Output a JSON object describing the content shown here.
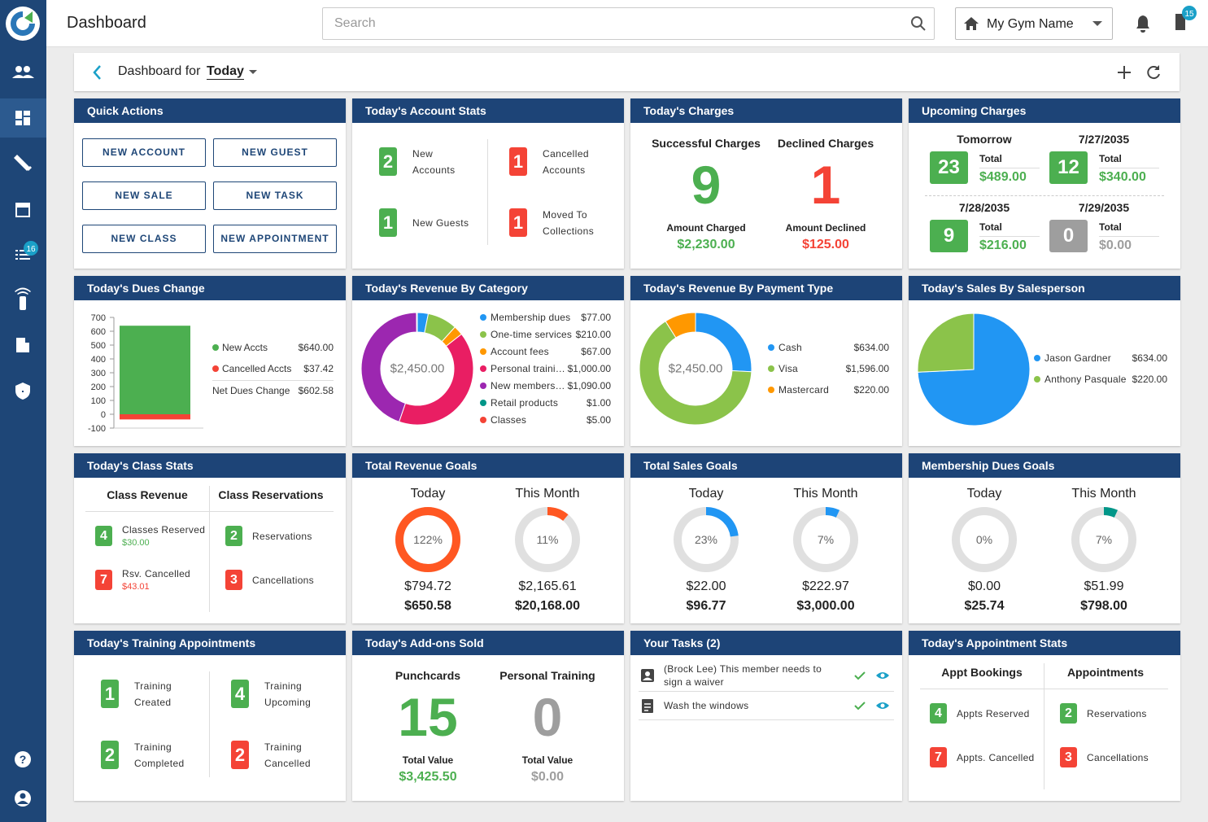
{
  "header": {
    "title": "Dashboard",
    "search_placeholder": "Search",
    "gym_name": "My Gym Name",
    "alerts_badge": 15
  },
  "sidebar": {
    "tasks_badge": 16
  },
  "toolbar": {
    "label": "Dashboard for",
    "period": "Today"
  },
  "quick_actions": {
    "title": "Quick Actions",
    "buttons": [
      "NEW ACCOUNT",
      "NEW GUEST",
      "NEW SALE",
      "NEW TASK",
      "NEW CLASS",
      "NEW APPOINTMENT"
    ]
  },
  "account_stats": {
    "title": "Today's Account Stats",
    "items": [
      {
        "count": 2,
        "label": "New Accounts",
        "color": "#4caf50"
      },
      {
        "count": 1,
        "label": "Cancelled Accounts",
        "color": "#f44336"
      },
      {
        "count": 1,
        "label": "New Guests",
        "color": "#4caf50"
      },
      {
        "count": 1,
        "label": "Moved To Collections",
        "color": "#f44336"
      }
    ]
  },
  "charges": {
    "title": "Today's Charges",
    "columns": [
      {
        "heading": "Successful Charges",
        "count": 9,
        "total_label": "Amount Charged",
        "total": "$2,230.00",
        "color": "#4caf50"
      },
      {
        "heading": "Declined Charges",
        "count": 1,
        "total_label": "Amount Declined",
        "total": "$125.00",
        "color": "#f44336"
      }
    ]
  },
  "upcoming_charges": {
    "title": "Upcoming Charges",
    "items": [
      {
        "date": "Tomorrow",
        "count": 23,
        "total_label": "Total",
        "total": "$489.00",
        "color": "#4caf50"
      },
      {
        "date": "7/27/2035",
        "count": 12,
        "total_label": "Total",
        "total": "$340.00",
        "color": "#4caf50"
      },
      {
        "date": "7/28/2035",
        "count": 9,
        "total_label": "Total",
        "total": "$216.00",
        "color": "#4caf50"
      },
      {
        "date": "7/29/2035",
        "count": 0,
        "total_label": "Total",
        "total": "$0.00",
        "color": "#9e9e9e"
      }
    ]
  },
  "dues_change": {
    "title": "Today's Dues Change",
    "chart": {
      "type": "bar",
      "categories": [
        null
      ],
      "series": [
        {
          "name": "New Accts",
          "color": "#4caf50",
          "values": [
            640
          ],
          "value_labels": [
            "$640.00"
          ]
        },
        {
          "name": "Cancelled Accts",
          "color": "#f44336",
          "values": [
            -37.42
          ],
          "value_labels": [
            "$37.42"
          ]
        }
      ],
      "ylim": [
        -100,
        700
      ],
      "yticks": [
        -100,
        0,
        100,
        200,
        300,
        400,
        500,
        600,
        700
      ],
      "net_label": "Net Dues Change",
      "net_value": "$602.58"
    }
  },
  "revenue_by_category": {
    "title": "Today's Revenue By Category",
    "chart": {
      "type": "donut",
      "center_label": "$2,450.00",
      "categories": [
        "Membership dues",
        "One-time services",
        "Account fees",
        "Personal traini…",
        "New members…",
        "Retail products",
        "Classes"
      ],
      "colors": [
        "#2196f3",
        "#8bc34a",
        "#ff9800",
        "#e91e63",
        "#9c27b0",
        "#009688",
        "#f44336"
      ],
      "values": [
        77,
        210,
        67,
        1000,
        1090,
        1,
        5
      ],
      "value_labels": [
        "$77.00",
        "$210.00",
        "$67.00",
        "$1,000.00",
        "$1,090.00",
        "$1.00",
        "$5.00"
      ]
    }
  },
  "revenue_by_payment": {
    "title": "Today's Revenue By Payment Type",
    "chart": {
      "type": "donut",
      "center_label": "$2,450.00",
      "categories": [
        "Cash",
        "Visa",
        "Mastercard"
      ],
      "colors": [
        "#2196f3",
        "#8bc34a",
        "#ff9800"
      ],
      "values": [
        634,
        1596,
        220
      ],
      "value_labels": [
        "$634.00",
        "$1,596.00",
        "$220.00"
      ]
    }
  },
  "sales_by_salesperson": {
    "title": "Today's Sales By Salesperson",
    "chart": {
      "type": "pie",
      "categories": [
        "Jason Gardner",
        "Anthony Pasquale"
      ],
      "colors": [
        "#2196f3",
        "#8bc34a"
      ],
      "values": [
        634,
        220
      ],
      "value_labels": [
        "$634.00",
        "$220.00"
      ]
    }
  },
  "class_stats": {
    "title": "Today's Class Stats",
    "columns": [
      {
        "heading": "Class Revenue",
        "items": [
          {
            "count": 4,
            "label": "Classes Reserved",
            "amount": "$30.00",
            "color": "#4caf50"
          },
          {
            "count": 7,
            "label": "Rsv. Cancelled",
            "amount": "$43.01",
            "color": "#f44336"
          }
        ]
      },
      {
        "heading": "Class Reservations",
        "items": [
          {
            "count": 2,
            "label": "Reservations",
            "color": "#4caf50"
          },
          {
            "count": 3,
            "label": "Cancellations",
            "color": "#f44336"
          }
        ]
      }
    ]
  },
  "revenue_goals": {
    "title": "Total Revenue Goals",
    "color": "#ff5722",
    "columns": [
      {
        "heading": "Today",
        "percent": 122,
        "percent_label": "122%",
        "value": "$794.72",
        "goal": "$650.58"
      },
      {
        "heading": "This Month",
        "percent": 11,
        "percent_label": "11%",
        "value": "$2,165.61",
        "goal": "$20,168.00"
      }
    ]
  },
  "sales_goals": {
    "title": "Total Sales Goals",
    "color": "#2196f3",
    "columns": [
      {
        "heading": "Today",
        "percent": 23,
        "percent_label": "23%",
        "value": "$22.00",
        "goal": "$96.77"
      },
      {
        "heading": "This Month",
        "percent": 7,
        "percent_label": "7%",
        "value": "$222.97",
        "goal": "$3,000.00"
      }
    ]
  },
  "dues_goals": {
    "title": "Membership Dues Goals",
    "color": "#009688",
    "columns": [
      {
        "heading": "Today",
        "percent": 0,
        "percent_label": "0%",
        "value": "$0.00",
        "goal": "$25.74"
      },
      {
        "heading": "This Month",
        "percent": 7,
        "percent_label": "7%",
        "value": "$51.99",
        "goal": "$798.00"
      }
    ]
  },
  "training": {
    "title": "Today's Training Appointments",
    "items": [
      {
        "count": 1,
        "label": "Training Created",
        "color": "#4caf50"
      },
      {
        "count": 4,
        "label": "Training Upcoming",
        "color": "#4caf50"
      },
      {
        "count": 2,
        "label": "Training Completed",
        "color": "#4caf50"
      },
      {
        "count": 2,
        "label": "Training Cancelled",
        "color": "#f44336"
      }
    ]
  },
  "addons": {
    "title": "Today's Add-ons Sold",
    "columns": [
      {
        "heading": "Punchcards",
        "count": 15,
        "total_label": "Total Value",
        "total": "$3,425.50",
        "color": "#4caf50"
      },
      {
        "heading": "Personal Training",
        "count": 0,
        "total_label": "Total Value",
        "total": "$0.00",
        "color": "#9e9e9e"
      }
    ]
  },
  "tasks": {
    "title": "Your Tasks (2)",
    "items": [
      "(Brock Lee) This member needs to sign a waiver",
      "Wash the windows"
    ]
  },
  "appointment_stats": {
    "title": "Today's Appointment Stats",
    "columns": [
      {
        "heading": "Appt Bookings",
        "items": [
          {
            "count": 4,
            "label": "Appts Reserved",
            "color": "#4caf50"
          },
          {
            "count": 7,
            "label": "Appts. Cancelled",
            "color": "#f44336"
          }
        ]
      },
      {
        "heading": "Appointments",
        "items": [
          {
            "count": 2,
            "label": "Reservations",
            "color": "#4caf50"
          },
          {
            "count": 3,
            "label": "Cancellations",
            "color": "#f44336"
          }
        ]
      }
    ]
  }
}
